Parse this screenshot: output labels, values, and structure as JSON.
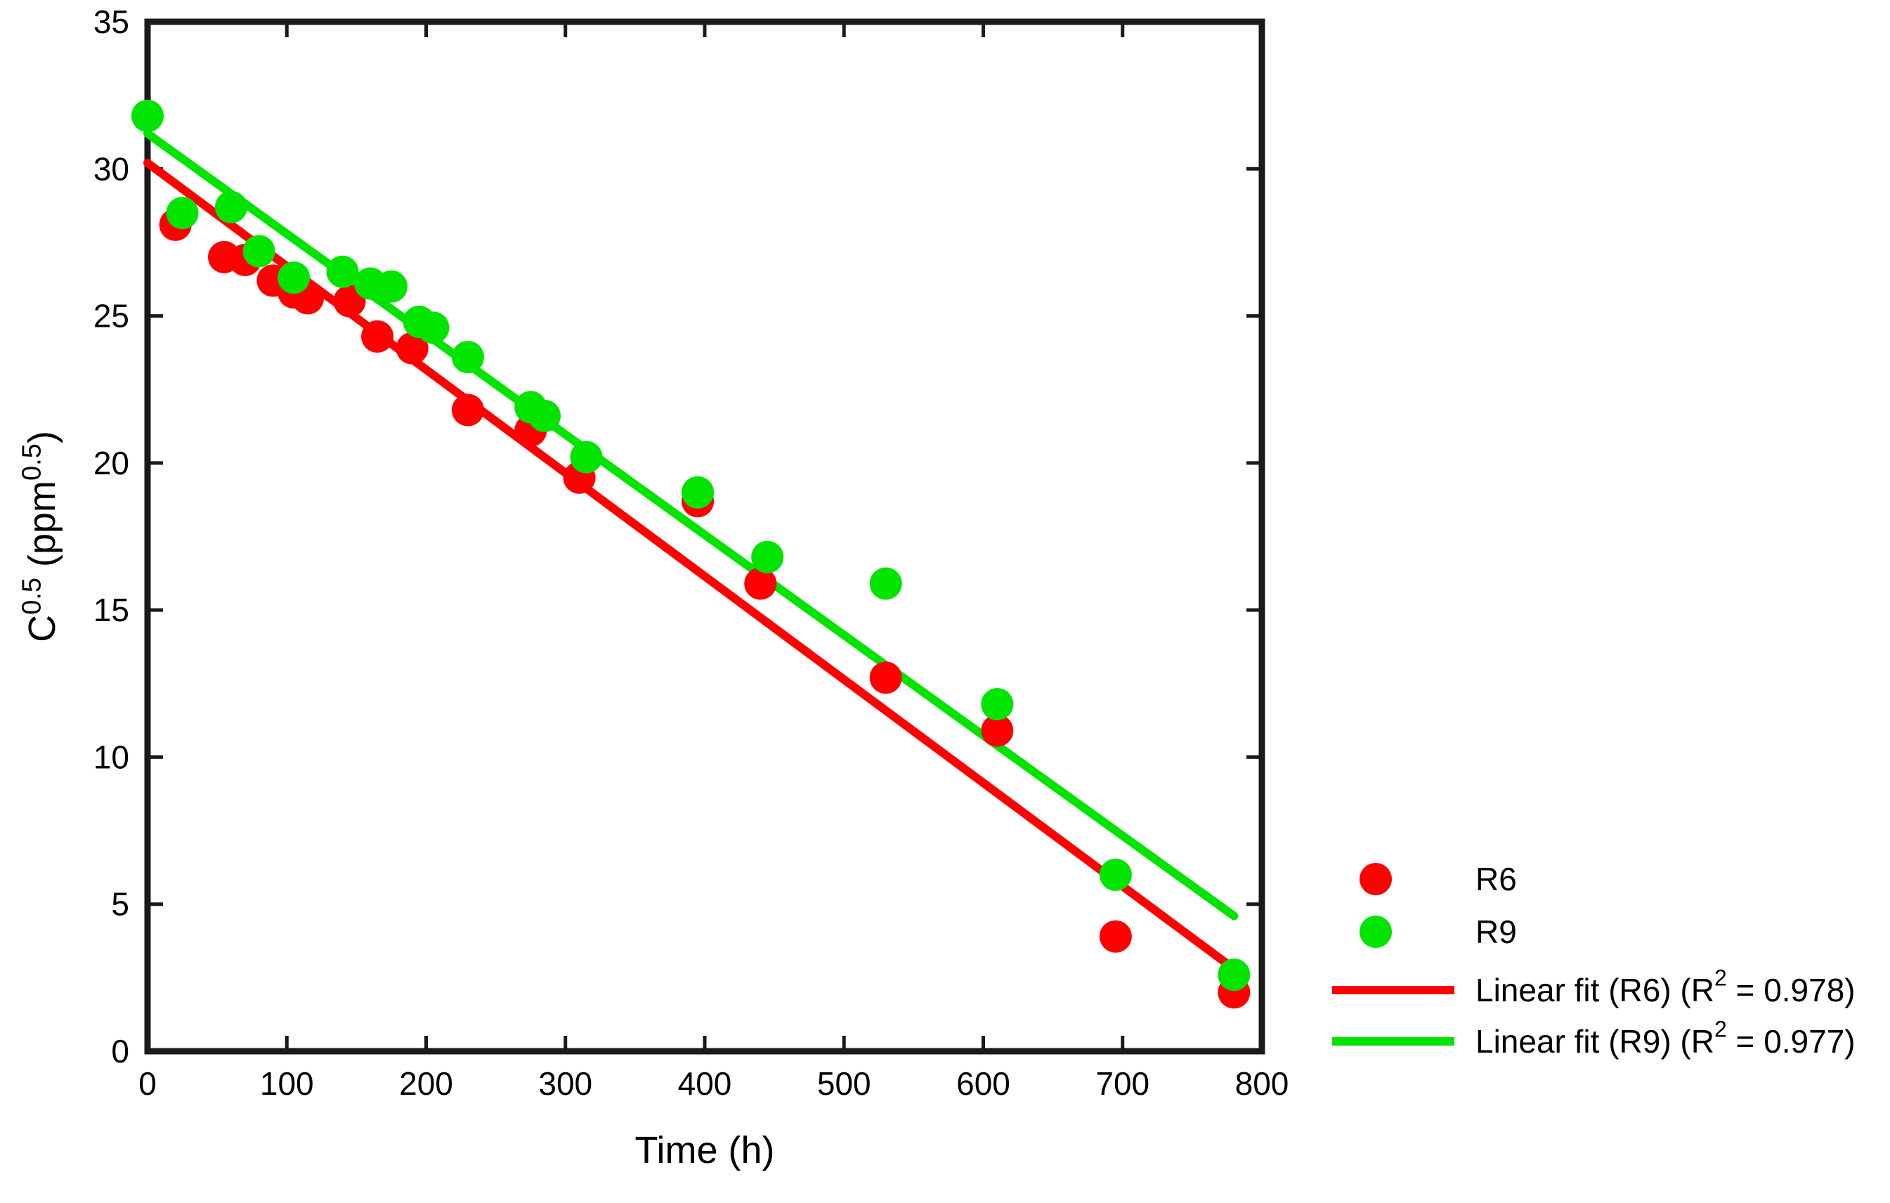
{
  "figure": {
    "background": "#ffffff",
    "axes_color": "#1a1a1a",
    "text_color": "#000000"
  },
  "chart_data": {
    "type": "scatter",
    "title": "",
    "xlabel": "Time (h)",
    "ylabel": "C^0.5 (ppm^0.5)",
    "ylabel_parts": [
      {
        "t": "C"
      },
      {
        "t": "0.5",
        "sup": true
      },
      {
        "t": " (ppm"
      },
      {
        "t": "0.5",
        "sup": true
      },
      {
        "t": ")"
      }
    ],
    "xlim": [
      0,
      800
    ],
    "ylim": [
      0,
      35
    ],
    "xticks": [
      0,
      100,
      200,
      300,
      400,
      500,
      600,
      700,
      800
    ],
    "yticks": [
      0,
      5,
      10,
      15,
      20,
      25,
      30,
      35
    ],
    "grid": false,
    "legend_position": "outside-right-bottom",
    "series": [
      {
        "name": "R6",
        "color": "#ff0000",
        "marker": "circle",
        "points": [
          [
            20,
            28.1
          ],
          [
            55,
            27.0
          ],
          [
            70,
            26.9
          ],
          [
            90,
            26.2
          ],
          [
            105,
            25.8
          ],
          [
            115,
            25.6
          ],
          [
            145,
            25.5
          ],
          [
            165,
            24.3
          ],
          [
            190,
            23.9
          ],
          [
            230,
            21.8
          ],
          [
            275,
            21.1
          ],
          [
            310,
            19.5
          ],
          [
            395,
            18.7
          ],
          [
            440,
            15.9
          ],
          [
            530,
            12.7
          ],
          [
            610,
            10.9
          ],
          [
            695,
            3.9
          ],
          [
            780,
            2.0
          ]
        ]
      },
      {
        "name": "R9",
        "color": "#00e400",
        "marker": "circle",
        "points": [
          [
            0,
            31.8
          ],
          [
            25,
            28.5
          ],
          [
            60,
            28.7
          ],
          [
            80,
            27.2
          ],
          [
            105,
            26.3
          ],
          [
            140,
            26.5
          ],
          [
            160,
            26.1
          ],
          [
            175,
            26.0
          ],
          [
            195,
            24.8
          ],
          [
            205,
            24.6
          ],
          [
            230,
            23.6
          ],
          [
            275,
            21.9
          ],
          [
            285,
            21.6
          ],
          [
            315,
            20.2
          ],
          [
            395,
            19.0
          ],
          [
            445,
            16.8
          ],
          [
            530,
            15.9
          ],
          [
            610,
            11.8
          ],
          [
            695,
            6.0
          ],
          [
            780,
            2.6
          ]
        ]
      }
    ],
    "fits": [
      {
        "series": "R6",
        "label": "Linear fit (R6)",
        "r_squared": 0.978,
        "color": "#ff0000",
        "x": [
          0,
          780
        ],
        "y": [
          30.2,
          2.8
        ]
      },
      {
        "series": "R9",
        "label": "Linear fit (R9)",
        "r_squared": 0.977,
        "color": "#00e400",
        "x": [
          0,
          780
        ],
        "y": [
          31.2,
          4.6
        ]
      }
    ],
    "legend": {
      "items": [
        {
          "type": "marker",
          "color": "#ff0000",
          "label": "R6",
          "label_parts": [
            {
              "t": "R6"
            }
          ]
        },
        {
          "type": "marker",
          "color": "#00e400",
          "label": "R9",
          "label_parts": [
            {
              "t": "R9"
            }
          ]
        },
        {
          "type": "line",
          "color": "#ff0000",
          "label": "Linear fit (R6) (R² = 0.978)",
          "label_parts": [
            {
              "t": "Linear fit (R6) (R"
            },
            {
              "t": "2",
              "sup": true
            },
            {
              "t": " = 0.978)"
            }
          ]
        },
        {
          "type": "line",
          "color": "#00e400",
          "label": "Linear fit (R9) (R² = 0.977)",
          "label_parts": [
            {
              "t": "Linear fit (R9) (R"
            },
            {
              "t": "2",
              "sup": true
            },
            {
              "t": " = 0.977)"
            }
          ]
        }
      ]
    }
  }
}
